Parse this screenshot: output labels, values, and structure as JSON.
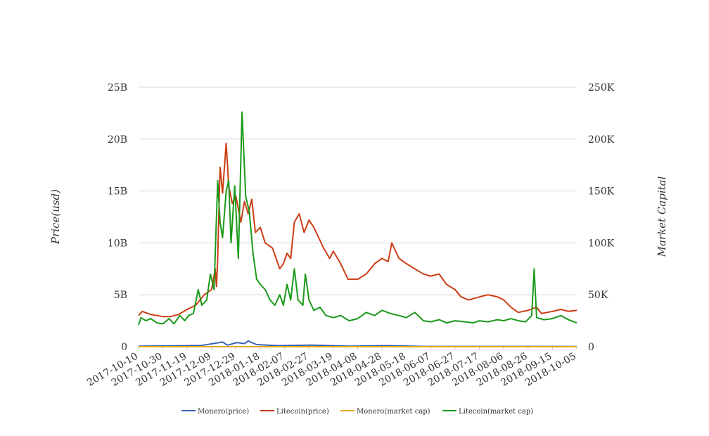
{
  "chart_data": {
    "type": "line",
    "title": "",
    "ylabel": "Price(usd)",
    "y2label": "Market Capital",
    "ylim": [
      0,
      25000000000
    ],
    "y2lim": [
      0,
      250000
    ],
    "y_ticks": [
      "0",
      "5B",
      "10B",
      "15B",
      "20B",
      "25B"
    ],
    "y2_ticks": [
      "0",
      "50K",
      "100K",
      "150K",
      "200K",
      "250K"
    ],
    "x_range": [
      "2017-10-10",
      "2018-10-05"
    ],
    "x_ticks": [
      "2017-10-10",
      "2017-10-30",
      "2017-11-19",
      "2017-12-09",
      "2017-12-29",
      "2018-01-18",
      "2018-02-07",
      "2018-02-27",
      "2018-03-19",
      "2018-04-08",
      "2018-04-28",
      "2018-05-18",
      "2018-06-07",
      "2018-06-27",
      "2018-07-17",
      "2018-08-06",
      "2018-08-26",
      "2018-09-15",
      "2018-10-05"
    ],
    "grid": true,
    "legend_position": "bottom",
    "series": [
      {
        "name": "Monero(price)",
        "color": "#3a64b4",
        "axis": "left",
        "points": [
          [
            "2017-10-10",
            50000000.0
          ],
          [
            "2017-11-10",
            80000000.0
          ],
          [
            "2017-12-01",
            120000000.0
          ],
          [
            "2017-12-18",
            450000000.0
          ],
          [
            "2017-12-22",
            150000000.0
          ],
          [
            "2017-12-30",
            400000000.0
          ],
          [
            "2018-01-05",
            300000000.0
          ],
          [
            "2018-01-08",
            550000000.0
          ],
          [
            "2018-01-15",
            200000000.0
          ],
          [
            "2018-02-01",
            100000000.0
          ],
          [
            "2018-03-01",
            150000000.0
          ],
          [
            "2018-04-01",
            50000000.0
          ],
          [
            "2018-05-01",
            100000000.0
          ],
          [
            "2018-06-01",
            30000000.0
          ],
          [
            "2018-10-05",
            20000000.0
          ]
        ]
      },
      {
        "name": "Litecoin(price)",
        "color": "#cc3d14",
        "axis": "left",
        "points": [
          [
            "2017-10-10",
            3000000000.0
          ],
          [
            "2017-10-13",
            3400000000.0
          ],
          [
            "2017-10-20",
            3100000000.0
          ],
          [
            "2017-10-30",
            2900000000.0
          ],
          [
            "2017-11-05",
            2900000000.0
          ],
          [
            "2017-11-12",
            3100000000.0
          ],
          [
            "2017-11-19",
            3600000000.0
          ],
          [
            "2017-11-26",
            4000000000.0
          ],
          [
            "2017-12-03",
            5000000000.0
          ],
          [
            "2017-12-09",
            5500000000.0
          ],
          [
            "2017-12-12",
            7500000000.0
          ],
          [
            "2017-12-13",
            5800000000.0
          ],
          [
            "2017-12-14",
            8500000000.0
          ],
          [
            "2017-12-16",
            17300000000.0
          ],
          [
            "2017-12-18",
            14800000000.0
          ],
          [
            "2017-12-21",
            19600000000.0
          ],
          [
            "2017-12-23",
            15500000000.0
          ],
          [
            "2017-12-26",
            13800000000.0
          ],
          [
            "2017-12-29",
            14500000000.0
          ],
          [
            "2018-01-02",
            12000000000.0
          ],
          [
            "2018-01-05",
            14000000000.0
          ],
          [
            "2018-01-08",
            12800000000.0
          ],
          [
            "2018-01-11",
            14200000000.0
          ],
          [
            "2018-01-14",
            11000000000.0
          ],
          [
            "2018-01-18",
            11500000000.0
          ],
          [
            "2018-01-22",
            10000000000.0
          ],
          [
            "2018-01-28",
            9500000000.0
          ],
          [
            "2018-02-03",
            7500000000.0
          ],
          [
            "2018-02-06",
            8000000000.0
          ],
          [
            "2018-02-09",
            9000000000.0
          ],
          [
            "2018-02-12",
            8500000000.0
          ],
          [
            "2018-02-15",
            12000000000.0
          ],
          [
            "2018-02-19",
            12800000000.0
          ],
          [
            "2018-02-23",
            11000000000.0
          ],
          [
            "2018-02-27",
            12200000000.0
          ],
          [
            "2018-03-03",
            11500000000.0
          ],
          [
            "2018-03-07",
            10500000000.0
          ],
          [
            "2018-03-11",
            9500000000.0
          ],
          [
            "2018-03-16",
            8500000000.0
          ],
          [
            "2018-03-19",
            9200000000.0
          ],
          [
            "2018-03-25",
            8000000000.0
          ],
          [
            "2018-03-31",
            6500000000.0
          ],
          [
            "2018-04-08",
            6500000000.0
          ],
          [
            "2018-04-15",
            7000000000.0
          ],
          [
            "2018-04-22",
            8000000000.0
          ],
          [
            "2018-04-28",
            8500000000.0
          ],
          [
            "2018-05-03",
            8200000000.0
          ],
          [
            "2018-05-06",
            10000000000.0
          ],
          [
            "2018-05-12",
            8500000000.0
          ],
          [
            "2018-05-18",
            8000000000.0
          ],
          [
            "2018-05-25",
            7500000000.0
          ],
          [
            "2018-06-01",
            7000000000.0
          ],
          [
            "2018-06-07",
            6800000000.0
          ],
          [
            "2018-06-14",
            7000000000.0
          ],
          [
            "2018-06-20",
            6000000000.0
          ],
          [
            "2018-06-27",
            5500000000.0
          ],
          [
            "2018-07-02",
            4800000000.0
          ],
          [
            "2018-07-08",
            4500000000.0
          ],
          [
            "2018-07-17",
            4800000000.0
          ],
          [
            "2018-07-24",
            5000000000.0
          ],
          [
            "2018-08-01",
            4800000000.0
          ],
          [
            "2018-08-06",
            4500000000.0
          ],
          [
            "2018-08-12",
            3800000000.0
          ],
          [
            "2018-08-18",
            3300000000.0
          ],
          [
            "2018-08-26",
            3500000000.0
          ],
          [
            "2018-09-02",
            3800000000.0
          ],
          [
            "2018-09-06",
            3200000000.0
          ],
          [
            "2018-09-15",
            3400000000.0
          ],
          [
            "2018-09-22",
            3600000000.0
          ],
          [
            "2018-09-28",
            3400000000.0
          ],
          [
            "2018-10-05",
            3500000000.0
          ]
        ]
      },
      {
        "name": "Monero(market cap)",
        "color": "#e8a80c",
        "axis": "right",
        "points": [
          [
            "2017-10-10",
            0
          ],
          [
            "2018-10-05",
            0
          ]
        ]
      },
      {
        "name": "Litecoin(market cap)",
        "color": "#1a9a1a",
        "axis": "right",
        "points": [
          [
            "2017-10-10",
            21000
          ],
          [
            "2017-10-12",
            28000
          ],
          [
            "2017-10-16",
            25000
          ],
          [
            "2017-10-20",
            27000
          ],
          [
            "2017-10-25",
            23000
          ],
          [
            "2017-10-30",
            22000
          ],
          [
            "2017-11-04",
            27000
          ],
          [
            "2017-11-08",
            22000
          ],
          [
            "2017-11-13",
            30000
          ],
          [
            "2017-11-17",
            25000
          ],
          [
            "2017-11-20",
            30000
          ],
          [
            "2017-11-24",
            32000
          ],
          [
            "2017-11-28",
            55000
          ],
          [
            "2017-12-01",
            40000
          ],
          [
            "2017-12-05",
            45000
          ],
          [
            "2017-12-08",
            70000
          ],
          [
            "2017-12-11",
            55000
          ],
          [
            "2017-12-14",
            160000
          ],
          [
            "2017-12-16",
            120000
          ],
          [
            "2017-12-18",
            105000
          ],
          [
            "2017-12-21",
            150000
          ],
          [
            "2017-12-23",
            160000
          ],
          [
            "2017-12-25",
            100000
          ],
          [
            "2017-12-28",
            155000
          ],
          [
            "2017-12-31",
            85000
          ],
          [
            "2018-01-03",
            226000
          ],
          [
            "2018-01-06",
            145000
          ],
          [
            "2018-01-09",
            130000
          ],
          [
            "2018-01-12",
            90000
          ],
          [
            "2018-01-15",
            65000
          ],
          [
            "2018-01-18",
            60000
          ],
          [
            "2018-01-22",
            55000
          ],
          [
            "2018-01-26",
            45000
          ],
          [
            "2018-01-30",
            40000
          ],
          [
            "2018-02-03",
            50000
          ],
          [
            "2018-02-06",
            40000
          ],
          [
            "2018-02-09",
            60000
          ],
          [
            "2018-02-12",
            45000
          ],
          [
            "2018-02-15",
            75000
          ],
          [
            "2018-02-18",
            45000
          ],
          [
            "2018-02-22",
            40000
          ],
          [
            "2018-02-24",
            70000
          ],
          [
            "2018-02-27",
            45000
          ],
          [
            "2018-03-03",
            35000
          ],
          [
            "2018-03-08",
            38000
          ],
          [
            "2018-03-13",
            30000
          ],
          [
            "2018-03-19",
            28000
          ],
          [
            "2018-03-25",
            30000
          ],
          [
            "2018-04-01",
            25000
          ],
          [
            "2018-04-08",
            27000
          ],
          [
            "2018-04-15",
            33000
          ],
          [
            "2018-04-22",
            30000
          ],
          [
            "2018-04-28",
            35000
          ],
          [
            "2018-05-05",
            32000
          ],
          [
            "2018-05-12",
            30000
          ],
          [
            "2018-05-18",
            28000
          ],
          [
            "2018-05-25",
            33000
          ],
          [
            "2018-06-01",
            25000
          ],
          [
            "2018-06-07",
            24000
          ],
          [
            "2018-06-14",
            26000
          ],
          [
            "2018-06-20",
            23000
          ],
          [
            "2018-06-27",
            25000
          ],
          [
            "2018-07-05",
            24000
          ],
          [
            "2018-07-12",
            23000
          ],
          [
            "2018-07-17",
            25000
          ],
          [
            "2018-07-24",
            24000
          ],
          [
            "2018-08-01",
            26000
          ],
          [
            "2018-08-06",
            25000
          ],
          [
            "2018-08-12",
            27000
          ],
          [
            "2018-08-18",
            25000
          ],
          [
            "2018-08-24",
            24000
          ],
          [
            "2018-08-29",
            30000
          ],
          [
            "2018-08-31",
            75000
          ],
          [
            "2018-09-02",
            28000
          ],
          [
            "2018-09-08",
            26000
          ],
          [
            "2018-09-15",
            27000
          ],
          [
            "2018-09-22",
            30000
          ],
          [
            "2018-09-28",
            26000
          ],
          [
            "2018-10-05",
            23000
          ]
        ]
      }
    ]
  }
}
